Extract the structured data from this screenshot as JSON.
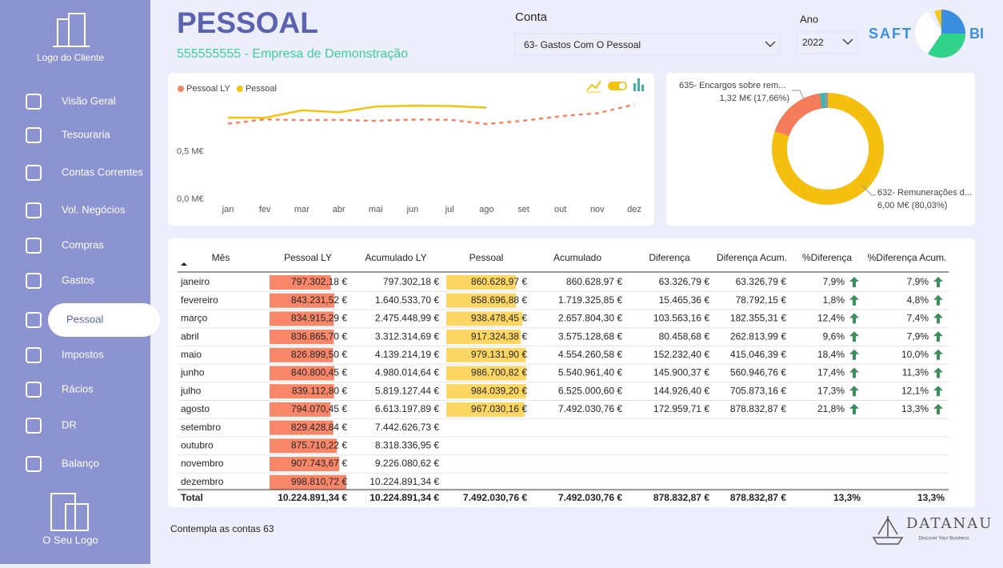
{
  "sidebar": {
    "client_logo": "Logo do Cliente",
    "items": [
      "Visão Geral",
      "Tesouraria",
      "Contas Correntes",
      "Vol. Negócios",
      "Compras",
      "Gastos",
      "Pessoal",
      "Impostos",
      "Rácios",
      "DR",
      "Balanço"
    ],
    "active": 6,
    "own_logo": "O Seu Logo"
  },
  "header": {
    "title": "PESSOAL",
    "subtitle": "555555555 - Empresa de Demonstração",
    "account_label": "Conta",
    "account": "63- Gastos Com O Pessoal",
    "year_label": "Ano",
    "year": "2022",
    "brand_left": "SAFT",
    "brand_right": "BI"
  },
  "chart_data": [
    {
      "type": "line",
      "categories": [
        "jan",
        "fev",
        "mar",
        "abr",
        "mai",
        "jun",
        "jul",
        "ago",
        "set",
        "out",
        "nov",
        "dez"
      ],
      "series": [
        {
          "name": "Pessoal LY",
          "color": "#f4845f",
          "dashed": true,
          "values": [
            0.797,
            0.843,
            0.835,
            0.837,
            0.827,
            0.841,
            0.839,
            0.794,
            0.829,
            0.876,
            0.908,
            0.999
          ]
        },
        {
          "name": "Pessoal",
          "color": "#f2c40f",
          "dashed": false,
          "values": [
            0.861,
            0.859,
            0.938,
            0.917,
            0.979,
            0.987,
            0.984,
            0.967,
            null,
            null,
            null,
            null
          ]
        }
      ],
      "ylim": [
        0,
        1.25
      ],
      "yticks": [
        {
          "value": 0,
          "label": "0,0 M€"
        },
        {
          "value": 0.5,
          "label": "0,5 M€"
        }
      ],
      "grid": false,
      "legend": "top-left"
    },
    {
      "type": "pie",
      "donut": true,
      "categories": [
        "632- Remunerações d...",
        "635- Encargos sobre rem...",
        null,
        null
      ],
      "values": [
        80.03,
        17.66,
        1.5,
        0.81
      ],
      "value_labels": [
        "6,00 M€ (80,03%)",
        "1,32 M€ (17,66%)",
        null,
        null
      ],
      "colors": [
        "#f5bf0f",
        "#f47c5a",
        "#3fb3a8",
        "#8d99a6"
      ]
    }
  ],
  "table": {
    "columns": [
      "Mês",
      "Pessoal LY",
      "Acumulado LY",
      "Pessoal",
      "Acumulado",
      "Diferença",
      "Diferença Acum.",
      "%Diferença",
      "%Diferença Acum."
    ],
    "rows": [
      [
        "janeiro",
        "797.302,18 €",
        "797.302,18 €",
        "860.628,97 €",
        "860.628,97 €",
        "63.326,79 €",
        "63.326,79 €",
        "7,9%",
        "7,9%"
      ],
      [
        "fevereiro",
        "843.231,52 €",
        "1.640.533,70 €",
        "858.696,88 €",
        "1.719.325,85 €",
        "15.465,36 €",
        "78.792,15 €",
        "1,8%",
        "4,8%"
      ],
      [
        "março",
        "834.915,29 €",
        "2.475.448,99 €",
        "938.478,45 €",
        "2.657.804,30 €",
        "103.563,16 €",
        "182.355,31 €",
        "12,4%",
        "7,4%"
      ],
      [
        "abril",
        "836.865,70 €",
        "3.312.314,69 €",
        "917.324,38 €",
        "3.575.128,68 €",
        "80.458,68 €",
        "262.813,99 €",
        "9,6%",
        "7,9%"
      ],
      [
        "maio",
        "826.899,50 €",
        "4.139.214,19 €",
        "979.131,90 €",
        "4.554.260,58 €",
        "152.232,40 €",
        "415.046,39 €",
        "18,4%",
        "10,0%"
      ],
      [
        "junho",
        "840.800,45 €",
        "4.980.014,64 €",
        "986.700,82 €",
        "5.540.961,40 €",
        "145.900,37 €",
        "560.946,76 €",
        "17,4%",
        "11,3%"
      ],
      [
        "julho",
        "839.112,80 €",
        "5.819.127,44 €",
        "984.039,20 €",
        "6.525.000,60 €",
        "144.926,40 €",
        "705.873,16 €",
        "17,3%",
        "12,1%"
      ],
      [
        "agosto",
        "794.070,45 €",
        "6.613.197,89 €",
        "967.030,16 €",
        "7.492.030,76 €",
        "172.959,71 €",
        "878.832,87 €",
        "21,8%",
        "13,3%"
      ],
      [
        "setembro",
        "829.428,84 €",
        "7.442.626,73 €"
      ],
      [
        "outubro",
        "875.710,22 €",
        "8.318.336,95 €"
      ],
      [
        "novembro",
        "907.743,67 €",
        "9.226.080,62 €"
      ],
      [
        "dezembro",
        "998.810,72 €",
        "10.224.891,34 €"
      ]
    ],
    "total": [
      "Total",
      "10.224.891,34 €",
      "10.224.891,34 €",
      "7.492.030,76 €",
      "7.492.030,76 €",
      "878.832,87 €",
      "878.832,87 €",
      "13,3%",
      "13,3%"
    ]
  },
  "footer": {
    "note": "Contempla as contas 63",
    "brand": "DATANAU",
    "tagline": "Discover Your Business"
  }
}
